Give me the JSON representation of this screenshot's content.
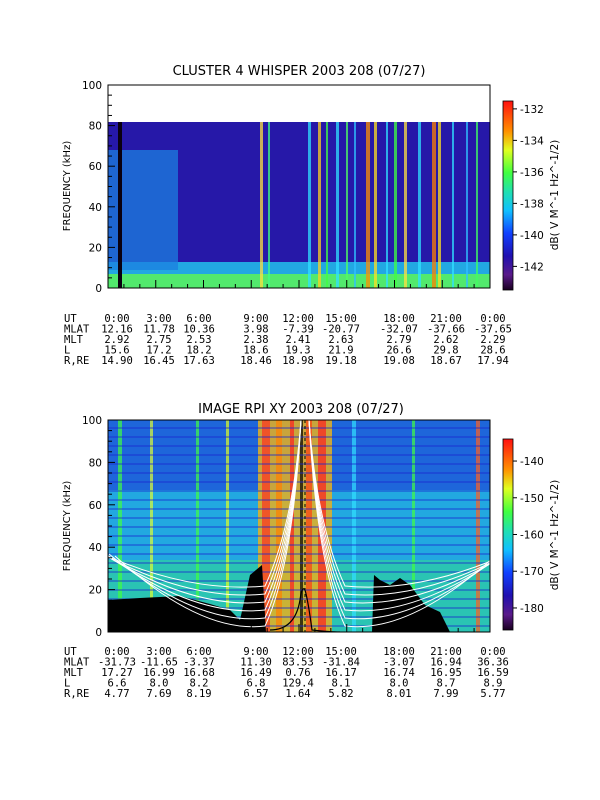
{
  "chart_data": [
    {
      "type": "heatmap",
      "title": "CLUSTER 4 WHISPER 2003 208 (07/27)",
      "ylabel": "FREQUENCY (kHz)",
      "ylim": [
        0,
        100
      ],
      "yticks": [
        "0",
        "20",
        "40",
        "60",
        "80",
        "100"
      ],
      "xlim_hours": [
        0,
        24
      ],
      "colorbar": {
        "label": "dB( V M^-1 Hz^-1/2)",
        "range": [
          -143.5,
          -131.5
        ],
        "ticks": [
          "-132",
          "-134",
          "-136",
          "-138",
          "-140",
          "-142"
        ],
        "tick_values": [
          -132,
          -134,
          -136,
          -138,
          -140,
          -142
        ]
      },
      "data_max_frequency_khz": 80,
      "ephemeris": {
        "rows": [
          {
            "label": "UT",
            "values": [
              "0:00",
              "3:00",
              "6:00",
              "9:00",
              "12:00",
              "15:00",
              "18:00",
              "21:00",
              "0:00"
            ]
          },
          {
            "label": "MLAT",
            "values": [
              "12.16",
              "11.78",
              "10.36",
              "3.98",
              "-7.39",
              "-20.77",
              "-32.07",
              "-37.66",
              "-37.65"
            ]
          },
          {
            "label": "MLT",
            "values": [
              "2.92",
              "2.75",
              "2.53",
              "2.38",
              "2.41",
              "2.63",
              "2.79",
              "2.62",
              "2.29"
            ]
          },
          {
            "label": "L",
            "values": [
              "15.6",
              "17.2",
              "18.2",
              "18.6",
              "19.3",
              "21.9",
              "26.6",
              "29.8",
              "28.6"
            ]
          },
          {
            "label": "R,RE",
            "values": [
              "14.90",
              "16.45",
              "17.63",
              "18.46",
              "18.98",
              "19.18",
              "19.08",
              "18.67",
              "17.94"
            ]
          }
        ]
      }
    },
    {
      "type": "heatmap",
      "title": "IMAGE RPI XY 2003 208 (07/27)",
      "ylabel": "FREQUENCY (kHz)",
      "ylim": [
        0,
        100
      ],
      "yticks": [
        "0",
        "20",
        "40",
        "60",
        "80",
        "100"
      ],
      "xlim_hours": [
        0,
        24
      ],
      "colorbar": {
        "label": "dB( V M^-1 Hz^-1/2)",
        "range": [
          -186,
          -134
        ],
        "ticks": [
          "-140",
          "-150",
          "-160",
          "-170",
          "-180"
        ],
        "tick_values": [
          -140,
          -150,
          -160,
          -170,
          -180
        ]
      },
      "ephemeris": {
        "rows": [
          {
            "label": "UT",
            "values": [
              "0:00",
              "3:00",
              "6:00",
              "9:00",
              "12:00",
              "15:00",
              "18:00",
              "21:00",
              "0:00"
            ]
          },
          {
            "label": "MLAT",
            "values": [
              "-31.73",
              "-11.65",
              "-3.37",
              "11.30",
              "83.53",
              "-31.84",
              "-3.07",
              "16.94",
              "36.36"
            ]
          },
          {
            "label": "MLT",
            "values": [
              "17.27",
              "16.99",
              "16.68",
              "16.49",
              "0.76",
              "16.17",
              "16.74",
              "16.95",
              "16.59"
            ]
          },
          {
            "label": "L",
            "values": [
              "6.6",
              "8.0",
              "8.2",
              "6.8",
              "129.4",
              "8.1",
              "8.0",
              "8.7",
              "8.9"
            ]
          },
          {
            "label": "R,RE",
            "values": [
              "4.77",
              "7.69",
              "8.19",
              "6.57",
              "1.64",
              "5.82",
              "8.01",
              "7.99",
              "5.77"
            ]
          }
        ]
      }
    }
  ]
}
